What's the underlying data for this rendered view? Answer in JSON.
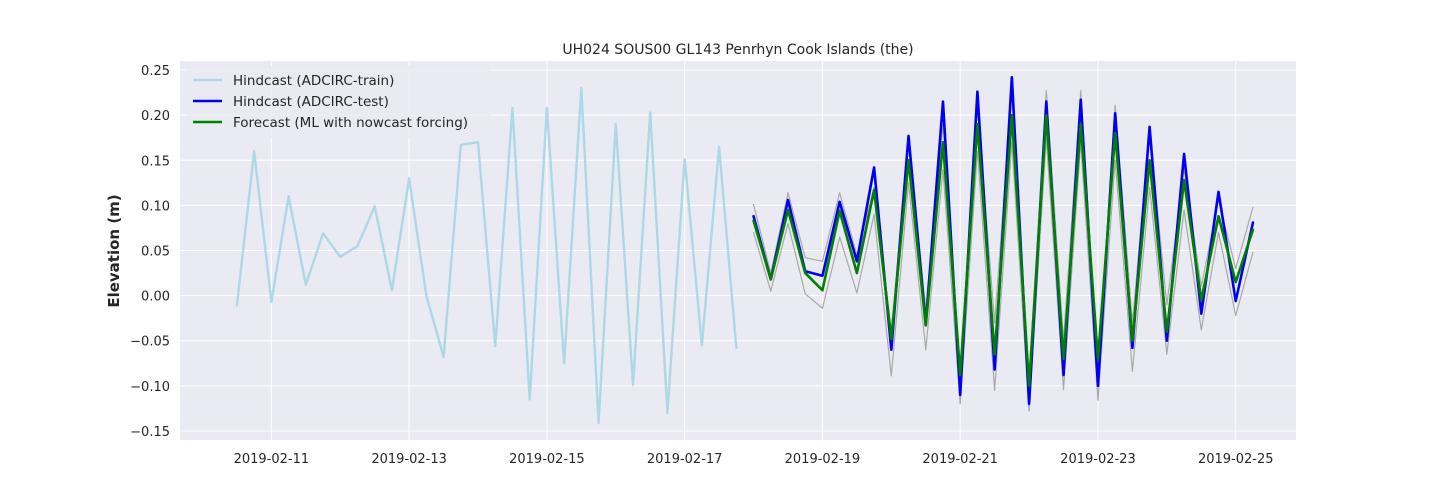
{
  "chart_data": {
    "type": "line",
    "title": "UH024 SOUS00 GL143 Penrhyn Cook Islands (the)",
    "xlabel": "",
    "ylabel": "Elevation (m)",
    "xlim": [
      "2019-02-09T16:10",
      "2019-02-25T21:00"
    ],
    "ylim": [
      -0.16,
      0.26
    ],
    "xticks": [
      "2019-02-11",
      "2019-02-13",
      "2019-02-15",
      "2019-02-17",
      "2019-02-19",
      "2019-02-21",
      "2019-02-23",
      "2019-02-25"
    ],
    "yticks": [
      -0.15,
      -0.1,
      -0.05,
      0.0,
      0.05,
      0.1,
      0.15,
      0.2,
      0.25
    ],
    "ytick_labels": [
      "−0.15",
      "−0.10",
      "−0.05",
      "0.00",
      "0.05",
      "0.10",
      "0.15",
      "0.20",
      "0.25"
    ],
    "grid": true,
    "legend_position": "upper-left",
    "background_color": "#eaeaf2",
    "series": [
      {
        "name": "Hindcast (ADCIRC-train)",
        "color": "#add8e6",
        "width": 2.4,
        "in_legend": true,
        "x": [
          "2019-02-10T12:00",
          "2019-02-10T18:00",
          "2019-02-11T00:00",
          "2019-02-11T06:00",
          "2019-02-11T12:00",
          "2019-02-11T18:00",
          "2019-02-12T00:00",
          "2019-02-12T06:00",
          "2019-02-12T12:00",
          "2019-02-12T18:00",
          "2019-02-13T00:00",
          "2019-02-13T06:00",
          "2019-02-13T12:00",
          "2019-02-13T18:00",
          "2019-02-14T00:00",
          "2019-02-14T06:00",
          "2019-02-14T12:00",
          "2019-02-14T18:00",
          "2019-02-15T00:00",
          "2019-02-15T06:00",
          "2019-02-15T12:00",
          "2019-02-15T18:00",
          "2019-02-16T00:00",
          "2019-02-16T06:00",
          "2019-02-16T12:00",
          "2019-02-16T18:00",
          "2019-02-17T00:00",
          "2019-02-17T06:00",
          "2019-02-17T12:00",
          "2019-02-17T18:00"
        ],
        "y": [
          -0.011,
          0.16,
          -0.007,
          0.11,
          0.012,
          0.069,
          0.043,
          0.055,
          0.099,
          0.006,
          0.13,
          0.0,
          -0.068,
          0.167,
          0.17,
          -0.056,
          0.208,
          -0.115,
          0.208,
          -0.075,
          0.23,
          -0.141,
          0.19,
          -0.099,
          0.203,
          -0.13,
          0.151,
          -0.055,
          0.165,
          -0.058
        ]
      },
      {
        "name": "Gray upper",
        "color": "#a9a9a9",
        "width": 1.2,
        "in_legend": false,
        "x": [
          "2019-02-18T00:00",
          "2019-02-18T06:00",
          "2019-02-18T12:00",
          "2019-02-18T18:00",
          "2019-02-19T00:00",
          "2019-02-19T06:00",
          "2019-02-19T12:00",
          "2019-02-19T18:00",
          "2019-02-20T00:00",
          "2019-02-20T06:00",
          "2019-02-20T12:00",
          "2019-02-20T18:00",
          "2019-02-21T00:00",
          "2019-02-21T06:00",
          "2019-02-21T12:00",
          "2019-02-21T18:00",
          "2019-02-22T00:00",
          "2019-02-22T06:00",
          "2019-02-22T12:00",
          "2019-02-22T18:00",
          "2019-02-23T00:00",
          "2019-02-23T06:00",
          "2019-02-23T12:00",
          "2019-02-23T18:00",
          "2019-02-24T00:00",
          "2019-02-24T06:00",
          "2019-02-24T12:00",
          "2019-02-24T18:00",
          "2019-02-25T00:00",
          "2019-02-25T06:00"
        ],
        "y": [
          0.101,
          0.025,
          0.114,
          0.042,
          0.038,
          0.114,
          0.045,
          0.12,
          -0.04,
          0.175,
          -0.015,
          0.19,
          -0.08,
          0.21,
          -0.03,
          0.225,
          -0.09,
          0.227,
          -0.05,
          0.227,
          -0.085,
          0.211,
          -0.03,
          0.181,
          -0.01,
          0.141,
          0.01,
          0.106,
          0.03,
          0.098
        ]
      },
      {
        "name": "Gray lower",
        "color": "#a9a9a9",
        "width": 1.2,
        "in_legend": false,
        "x": [
          "2019-02-18T00:00",
          "2019-02-18T06:00",
          "2019-02-18T12:00",
          "2019-02-18T18:00",
          "2019-02-19T00:00",
          "2019-02-19T06:00",
          "2019-02-19T12:00",
          "2019-02-19T18:00",
          "2019-02-20T00:00",
          "2019-02-20T06:00",
          "2019-02-20T12:00",
          "2019-02-20T18:00",
          "2019-02-21T00:00",
          "2019-02-21T06:00",
          "2019-02-21T12:00",
          "2019-02-21T18:00",
          "2019-02-22T00:00",
          "2019-02-22T06:00",
          "2019-02-22T12:00",
          "2019-02-22T18:00",
          "2019-02-23T00:00",
          "2019-02-23T06:00",
          "2019-02-23T12:00",
          "2019-02-23T18:00",
          "2019-02-24T00:00",
          "2019-02-24T06:00",
          "2019-02-24T12:00",
          "2019-02-24T18:00",
          "2019-02-25T00:00",
          "2019-02-25T06:00"
        ],
        "y": [
          0.07,
          0.005,
          0.08,
          0.002,
          -0.014,
          0.065,
          0.003,
          0.09,
          -0.089,
          0.125,
          -0.06,
          0.14,
          -0.12,
          0.16,
          -0.105,
          0.17,
          -0.128,
          0.175,
          -0.104,
          0.17,
          -0.116,
          0.15,
          -0.084,
          0.12,
          -0.065,
          0.095,
          -0.038,
          0.07,
          -0.022,
          0.048
        ]
      },
      {
        "name": "Hindcast (ADCIRC-test)",
        "color": "#0000ee",
        "width": 2.6,
        "in_legend": true,
        "x": [
          "2019-02-18T00:00",
          "2019-02-18T06:00",
          "2019-02-18T12:00",
          "2019-02-18T18:00",
          "2019-02-19T00:00",
          "2019-02-19T06:00",
          "2019-02-19T12:00",
          "2019-02-19T18:00",
          "2019-02-20T00:00",
          "2019-02-20T06:00",
          "2019-02-20T12:00",
          "2019-02-20T18:00",
          "2019-02-21T00:00",
          "2019-02-21T06:00",
          "2019-02-21T12:00",
          "2019-02-21T18:00",
          "2019-02-22T00:00",
          "2019-02-22T06:00",
          "2019-02-22T12:00",
          "2019-02-22T18:00",
          "2019-02-23T00:00",
          "2019-02-23T06:00",
          "2019-02-23T12:00",
          "2019-02-23T18:00",
          "2019-02-24T00:00",
          "2019-02-24T06:00",
          "2019-02-24T12:00",
          "2019-02-24T18:00",
          "2019-02-25T00:00",
          "2019-02-25T06:00"
        ],
        "y": [
          0.088,
          0.018,
          0.106,
          0.027,
          0.022,
          0.104,
          0.038,
          0.142,
          -0.06,
          0.177,
          -0.032,
          0.215,
          -0.11,
          0.226,
          -0.082,
          0.242,
          -0.12,
          0.215,
          -0.088,
          0.217,
          -0.1,
          0.202,
          -0.058,
          0.187,
          -0.05,
          0.157,
          -0.02,
          0.115,
          -0.006,
          0.081
        ]
      },
      {
        "name": "Forecast (ML with nowcast forcing)",
        "color": "#008000",
        "width": 2.6,
        "in_legend": true,
        "x": [
          "2019-02-18T00:00",
          "2019-02-18T06:00",
          "2019-02-18T12:00",
          "2019-02-18T18:00",
          "2019-02-19T00:00",
          "2019-02-19T06:00",
          "2019-02-19T12:00",
          "2019-02-19T18:00",
          "2019-02-20T00:00",
          "2019-02-20T06:00",
          "2019-02-20T12:00",
          "2019-02-20T18:00",
          "2019-02-21T00:00",
          "2019-02-21T06:00",
          "2019-02-21T12:00",
          "2019-02-21T18:00",
          "2019-02-22T00:00",
          "2019-02-22T06:00",
          "2019-02-22T12:00",
          "2019-02-22T18:00",
          "2019-02-23T00:00",
          "2019-02-23T06:00",
          "2019-02-23T12:00",
          "2019-02-23T18:00",
          "2019-02-24T00:00",
          "2019-02-24T06:00",
          "2019-02-24T12:00",
          "2019-02-24T18:00",
          "2019-02-25T00:00",
          "2019-02-25T06:00"
        ],
        "y": [
          0.083,
          0.018,
          0.095,
          0.025,
          0.006,
          0.094,
          0.025,
          0.117,
          -0.048,
          0.15,
          -0.033,
          0.17,
          -0.088,
          0.19,
          -0.065,
          0.2,
          -0.1,
          0.2,
          -0.07,
          0.19,
          -0.07,
          0.18,
          -0.05,
          0.15,
          -0.04,
          0.128,
          -0.005,
          0.088,
          0.015,
          0.073
        ]
      }
    ]
  }
}
